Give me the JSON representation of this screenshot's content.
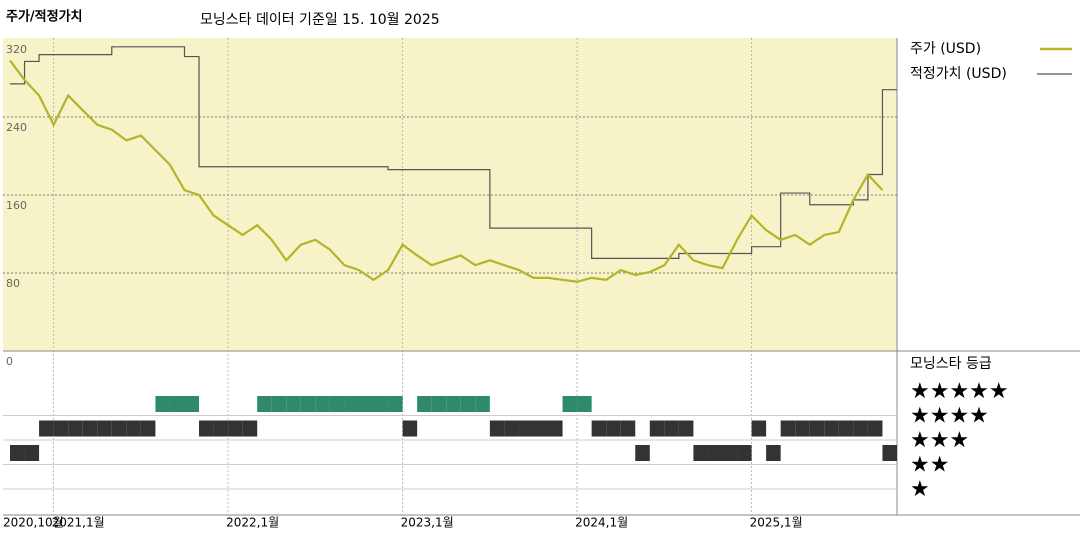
{
  "chart_data": {
    "type": "line",
    "title": "주가/적정가치",
    "subtitle": "모닝스타 데이터 기준일 15. 10월 2025",
    "x": [
      "2020-10",
      "2020-11",
      "2020-12",
      "2021-01",
      "2021-02",
      "2021-03",
      "2021-04",
      "2021-05",
      "2021-06",
      "2021-07",
      "2021-08",
      "2021-09",
      "2021-10",
      "2021-11",
      "2021-12",
      "2022-01",
      "2022-02",
      "2022-03",
      "2022-04",
      "2022-05",
      "2022-06",
      "2022-07",
      "2022-08",
      "2022-09",
      "2022-10",
      "2022-11",
      "2022-12",
      "2023-01",
      "2023-02",
      "2023-03",
      "2023-04",
      "2023-05",
      "2023-06",
      "2023-07",
      "2023-08",
      "2023-09",
      "2023-10",
      "2023-11",
      "2023-12",
      "2024-01",
      "2024-02",
      "2024-03",
      "2024-04",
      "2024-05",
      "2024-06",
      "2024-07",
      "2024-08",
      "2024-09",
      "2024-10",
      "2024-11",
      "2024-12",
      "2025-01",
      "2025-02",
      "2025-03",
      "2025-04",
      "2025-05",
      "2025-06",
      "2025-07",
      "2025-08",
      "2025-09",
      "2025-10"
    ],
    "xlim": [
      "2020-10",
      "2025-11"
    ],
    "xticks": [
      {
        "value": "2020-10",
        "label": "2020,10월"
      },
      {
        "value": "2021-01",
        "label": "2021,1월"
      },
      {
        "value": "2022-01",
        "label": "2022,1월"
      },
      {
        "value": "2023-01",
        "label": "2023,1월"
      },
      {
        "value": "2024-01",
        "label": "2024,1월"
      },
      {
        "value": "2025-01",
        "label": "2025,1월"
      }
    ],
    "ylim": [
      0,
      320
    ],
    "yticks": [
      0,
      80,
      160,
      240,
      320
    ],
    "grid": true,
    "series": [
      {
        "name": "주가 (USD)",
        "color": "#b3b42a",
        "values": [
          298,
          278,
          262,
          232,
          262,
          247,
          232,
          227,
          216,
          221,
          206,
          191,
          165,
          160,
          139,
          129,
          119,
          129,
          114,
          93,
          109,
          114,
          104,
          88,
          83,
          73,
          83,
          109,
          98,
          88,
          93,
          98,
          88,
          93,
          88,
          83,
          75,
          75,
          73,
          71,
          75,
          73,
          83,
          78,
          81,
          88,
          109,
          93,
          88,
          85,
          114,
          139,
          124,
          114,
          119,
          109,
          119,
          122,
          155,
          181,
          165
        ]
      },
      {
        "name": "적정가치 (USD)",
        "color": "#555555",
        "step": true,
        "values": [
          274,
          297,
          304,
          304,
          304,
          304,
          304,
          312,
          312,
          312,
          312,
          312,
          302,
          189,
          189,
          189,
          189,
          189,
          189,
          189,
          189,
          189,
          189,
          189,
          189,
          189,
          186,
          186,
          186,
          186,
          186,
          186,
          186,
          126,
          126,
          126,
          126,
          126,
          126,
          126,
          95,
          95,
          95,
          95,
          95,
          95,
          100,
          100,
          100,
          100,
          100,
          107,
          107,
          162,
          162,
          150,
          150,
          150,
          155,
          181,
          268
        ]
      }
    ],
    "rating": {
      "title": "모닝스타 등급",
      "levels": [
        5,
        4,
        3,
        2,
        1
      ],
      "level_labels": [
        "★★★★★",
        "★★★★",
        "★★★",
        "★★",
        "★"
      ],
      "top_color": "#2f8a6c",
      "color": "#333333",
      "values": [
        3,
        3,
        4,
        4,
        4,
        4,
        4,
        4,
        4,
        4,
        5,
        5,
        5,
        4,
        4,
        4,
        4,
        5,
        5,
        5,
        5,
        5,
        5,
        5,
        5,
        5,
        5,
        4,
        5,
        5,
        5,
        5,
        5,
        4,
        4,
        4,
        4,
        4,
        5,
        5,
        4,
        4,
        4,
        3,
        4,
        4,
        4,
        3,
        3,
        3,
        3,
        4,
        3,
        4,
        4,
        4,
        4,
        4,
        4,
        4,
        3
      ]
    }
  }
}
